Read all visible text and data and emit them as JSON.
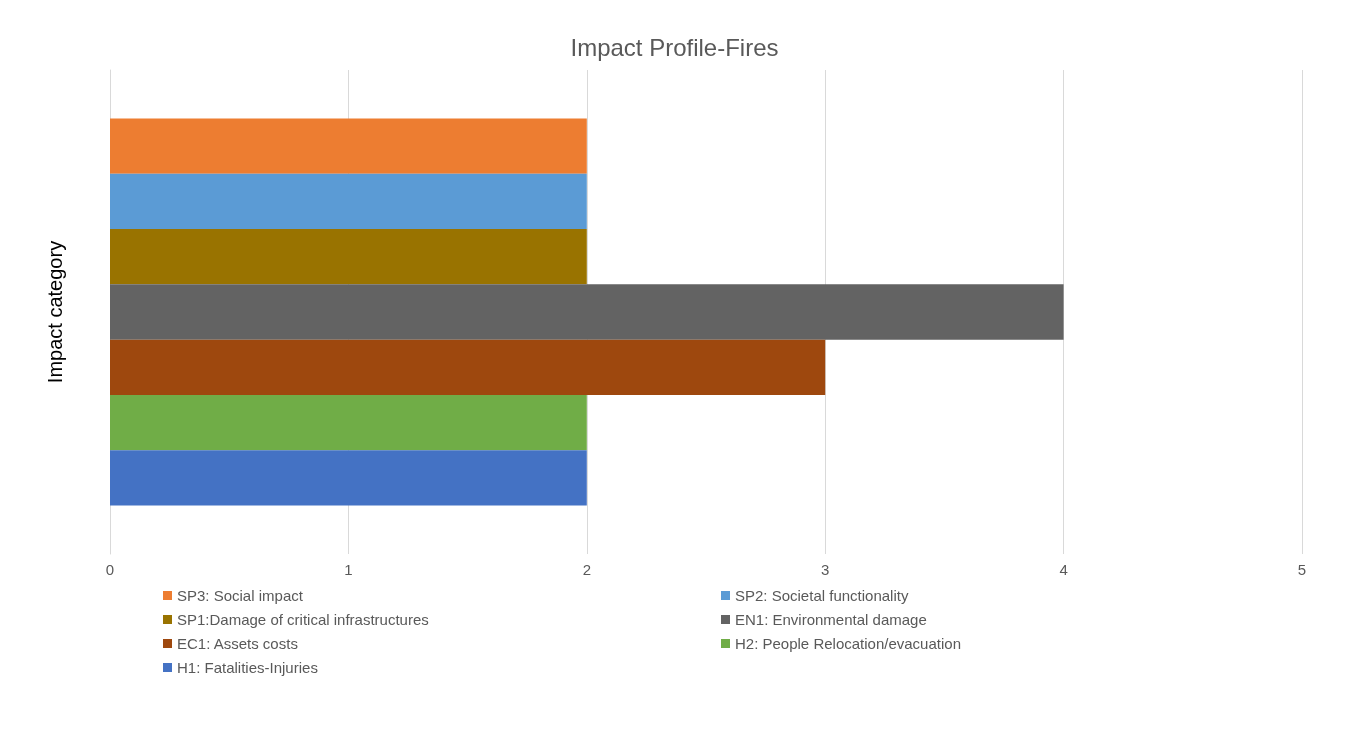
{
  "chart_data": {
    "type": "bar",
    "orientation": "horizontal",
    "title": "Impact Profile-Fires",
    "ylabel": "Impact category",
    "categories": [
      null
    ],
    "series": [
      {
        "name": "SP3: Social impact",
        "color": "#ed7d31",
        "values": [
          2
        ]
      },
      {
        "name": "SP2: Societal functionality",
        "color": "#5b9bd5",
        "values": [
          2
        ]
      },
      {
        "name": "SP1:Damage of critical infrastructures",
        "color": "#997300",
        "values": [
          2
        ]
      },
      {
        "name": "EN1: Environmental damage",
        "color": "#636363",
        "values": [
          4
        ]
      },
      {
        "name": "EC1: Assets costs",
        "color": "#9e480e",
        "values": [
          3
        ]
      },
      {
        "name": "H2: People Relocation/evacuation",
        "color": "#70ad47",
        "values": [
          2
        ]
      },
      {
        "name": "H1: Fatalities-Injuries",
        "color": "#4472c4",
        "values": [
          2
        ]
      }
    ],
    "xlim": [
      0,
      5
    ],
    "xticks": [
      0,
      1,
      2,
      3,
      4,
      5
    ],
    "grid": "x",
    "legend": "bottom"
  }
}
